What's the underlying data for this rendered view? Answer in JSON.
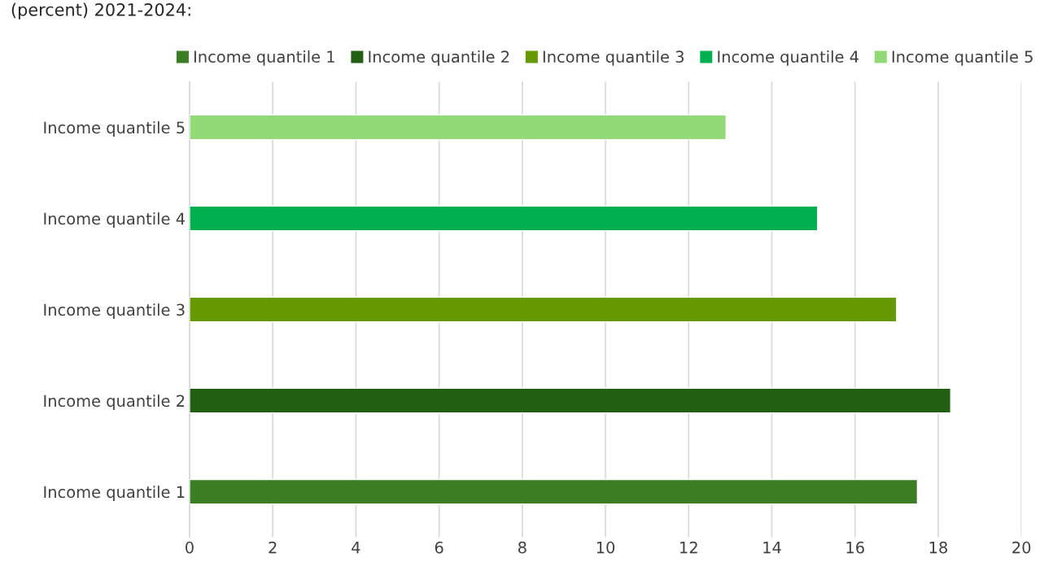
{
  "chart_data": {
    "type": "bar",
    "orientation": "horizontal",
    "title": "(percent) 2021-2024:",
    "categories": [
      "Income quantile 5",
      "Income quantile 4",
      "Income quantile 3",
      "Income quantile 2",
      "Income quantile 1"
    ],
    "series": [
      {
        "name": "Income quantile 1",
        "color": "#3b7d23",
        "values": [
          null,
          null,
          null,
          null,
          17.5
        ]
      },
      {
        "name": "Income quantile 2",
        "color": "#235f12",
        "values": [
          null,
          null,
          null,
          18.3,
          null
        ]
      },
      {
        "name": "Income quantile 3",
        "color": "#669900",
        "values": [
          null,
          null,
          17.0,
          null,
          null
        ]
      },
      {
        "name": "Income quantile 4",
        "color": "#00b050",
        "values": [
          null,
          15.1,
          null,
          null,
          null
        ]
      },
      {
        "name": "Income quantile 5",
        "color": "#92d977",
        "values": [
          12.9,
          null,
          null,
          null,
          null
        ]
      }
    ],
    "xlim": [
      0,
      20
    ],
    "xticks": [
      0,
      2,
      4,
      6,
      8,
      10,
      12,
      14,
      16,
      18,
      20
    ],
    "grid": "x",
    "legend": "top"
  }
}
